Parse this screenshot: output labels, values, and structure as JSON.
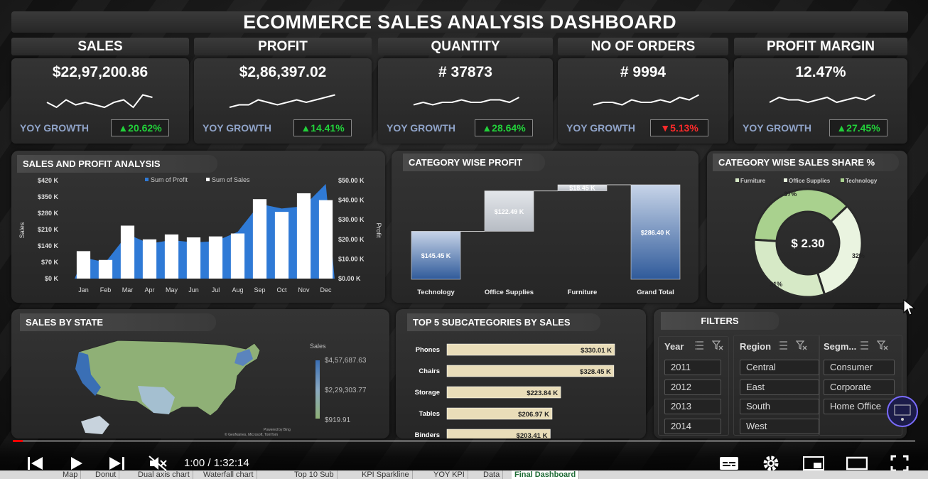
{
  "dashboard": {
    "title": "ECOMMERCE SALES ANALYSIS DASHBOARD",
    "kpis": [
      {
        "header": "SALES",
        "value": "$22,97,200.86",
        "yoy_label": "YOY GROWTH",
        "yoy": "▲20.62%",
        "yoy_color": "#22d13a"
      },
      {
        "header": "PROFIT",
        "value": "$2,86,397.02",
        "yoy_label": "YOY GROWTH",
        "yoy": "▲14.41%",
        "yoy_color": "#22d13a"
      },
      {
        "header": "QUANTITY",
        "value": "# 37873",
        "yoy_label": "YOY GROWTH",
        "yoy": "▲28.64%",
        "yoy_color": "#22d13a"
      },
      {
        "header": "NO OF ORDERS",
        "value": "# 9994",
        "yoy_label": "YOY GROWTH",
        "yoy": "▼5.13%",
        "yoy_color": "#ff2a2a"
      },
      {
        "header": "PROFIT MARGIN",
        "value": "12.47%",
        "yoy_label": "YOY GROWTH",
        "yoy": "▲27.45%",
        "yoy_color": "#22d13a"
      }
    ],
    "sections": {
      "sales_profit": "SALES AND PROFIT ANALYSIS",
      "category_profit": "CATEGORY WISE PROFIT",
      "category_share": "CATEGORY WISE SALES SHARE %",
      "sales_state": "SALES BY STATE",
      "top5": "TOP 5 SUBCATEGORIES BY SALES",
      "filters": "FILTERS"
    },
    "map": {
      "legend_title": "Sales",
      "legend_max": "$4,57,687.63",
      "legend_mid": "$2,29,303.77",
      "legend_min": "$919.91",
      "credit1": "Powered by Bing",
      "credit2": "© GeoNames, Microsoft, TomTom"
    },
    "donut_center": "$ 2.30",
    "filters": {
      "year": {
        "label": "Year",
        "options": [
          "2011",
          "2012",
          "2013",
          "2014"
        ]
      },
      "region": {
        "label": "Region",
        "options": [
          "Central",
          "East",
          "South",
          "West"
        ]
      },
      "segment": {
        "label": "Segm...",
        "options": [
          "Consumer",
          "Corporate",
          "Home Office"
        ]
      }
    }
  },
  "chart_data": [
    {
      "type": "bar",
      "categories": [
        "Jan",
        "Feb",
        "Mar",
        "Apr",
        "May",
        "Jun",
        "Jul",
        "Aug",
        "Sep",
        "Oct",
        "Nov",
        "Dec"
      ],
      "series": [
        {
          "name": "Sum of Sales",
          "values": [
            14000,
            9500,
            27000,
            20000,
            22500,
            21000,
            21500,
            23000,
            40500,
            34000,
            43500,
            40000
          ],
          "color": "#ffffff"
        },
        {
          "name": "Sum of Profit",
          "values": [
            90,
            70,
            190,
            150,
            165,
            155,
            160,
            200,
            320,
            300,
            310,
            405
          ],
          "color": "#2f7ad6"
        }
      ],
      "y_left_ticks": [
        "$0 K",
        "$70 K",
        "$140 K",
        "$210 K",
        "$280 K",
        "$350 K",
        "$420 K"
      ],
      "y_right_ticks": [
        "$0.00 K",
        "$10.00 K",
        "$20.00 K",
        "$30.00 K",
        "$40.00 K",
        "$50.00 K"
      ],
      "ylabel_left": "Sales",
      "ylabel_right": "Profit",
      "y_left_lim": [
        0,
        420
      ],
      "y_right_lim": [
        0,
        50000
      ],
      "legend": "top"
    },
    {
      "type": "bar",
      "subtype": "waterfall",
      "categories": [
        "Technology",
        "Office Supplies",
        "Furniture",
        "Grand Total"
      ],
      "values": [
        145.45,
        122.49,
        18.45,
        286.4
      ],
      "labels": [
        "$145.45 K",
        "$122.49 K",
        "$18.45 K",
        "$286.40 K"
      ]
    },
    {
      "type": "pie",
      "subtype": "donut",
      "categories": [
        "Furniture",
        "Office Supplies",
        "Technology"
      ],
      "values": [
        31,
        32,
        37
      ],
      "labels": [
        "31%",
        "32%",
        "37%"
      ],
      "colors": [
        "#d6e9c6",
        "#eaf4e0",
        "#a9d18e"
      ],
      "legend": "top"
    },
    {
      "type": "bar",
      "orientation": "horizontal",
      "categories": [
        "Phones",
        "Chairs",
        "Storage",
        "Tables",
        "Binders"
      ],
      "values": [
        330.01,
        328.45,
        223.84,
        206.97,
        203.41
      ],
      "labels": [
        "$330.01 K",
        "$328.45 K",
        "$223.84 K",
        "$206.97 K",
        "$203.41 K"
      ]
    }
  ],
  "player": {
    "time": "1:00 / 1:32:14",
    "progress": 0.011
  },
  "sheets": [
    "Map",
    "Donut",
    "Dual axis chart",
    "Waterfall chart",
    "Top 10 Sub",
    "KPI Sparkline",
    "YOY KPI",
    "Data",
    "Final Dashboard"
  ]
}
